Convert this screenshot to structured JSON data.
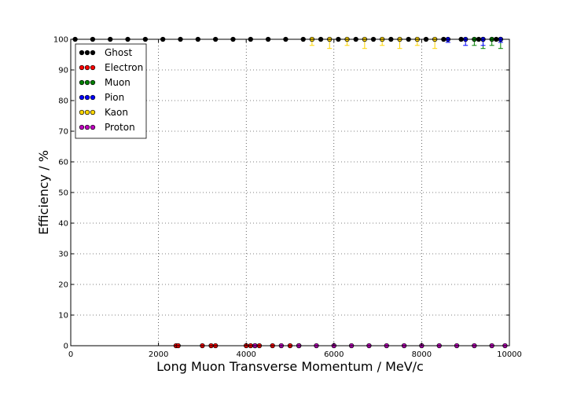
{
  "chart_data": {
    "type": "scatter",
    "title": "",
    "xlabel": "Long Muon Transverse Momentum / MeV/c",
    "ylabel": "Efficiency / %",
    "xlim": [
      0,
      10000
    ],
    "ylim": [
      0,
      100
    ],
    "xticks": [
      "0",
      "2000",
      "4000",
      "6000",
      "8000",
      "10000"
    ],
    "yticks": [
      "0",
      "10",
      "20",
      "30",
      "40",
      "50",
      "60",
      "70",
      "80",
      "90",
      "100"
    ],
    "grid": true,
    "legend_position": "top-left",
    "series": [
      {
        "name": "Ghost",
        "color": "#000000",
        "x": [
          100,
          500,
          900,
          1300,
          1700,
          2100,
          2500,
          2900,
          3300,
          3700,
          4100,
          4500,
          4900,
          5300,
          5700,
          6100,
          6500,
          6900,
          7300,
          7700,
          8100,
          8500,
          8900,
          9300,
          9700
        ],
        "y": [
          100,
          100,
          100,
          100,
          100,
          100,
          100,
          100,
          100,
          100,
          100,
          100,
          100,
          100,
          100,
          100,
          100,
          100,
          100,
          100,
          100,
          100,
          100,
          100,
          100
        ],
        "err": [
          0,
          0,
          0,
          0,
          0,
          0,
          0,
          0,
          0,
          0,
          0,
          0,
          0,
          0,
          0,
          0,
          0,
          0,
          0,
          0,
          0,
          0,
          0,
          0,
          0
        ]
      },
      {
        "name": "Electron",
        "color": "#ff0000",
        "x": [
          2400,
          2450,
          3000,
          3200,
          3300,
          4000,
          4100,
          4200,
          4300,
          4600,
          5000,
          5200
        ],
        "y": [
          0,
          0,
          0,
          0,
          0,
          0,
          0,
          0,
          0,
          0,
          0,
          0
        ],
        "err": [
          0,
          0,
          0,
          0,
          0,
          0,
          0,
          0,
          0,
          0,
          0,
          0
        ]
      },
      {
        "name": "Muon",
        "color": "#008000",
        "x": [
          9200,
          9400,
          9600,
          9800
        ],
        "y": [
          100,
          100,
          100,
          100
        ],
        "err": [
          2,
          3,
          2,
          3
        ]
      },
      {
        "name": "Pion",
        "color": "#0000ff",
        "x": [
          8600,
          9000,
          9400,
          9800
        ],
        "y": [
          100,
          100,
          100,
          100
        ],
        "err": [
          1,
          2,
          2,
          1
        ]
      },
      {
        "name": "Kaon",
        "color": "#ffd700",
        "x": [
          5500,
          5900,
          6300,
          6700,
          7100,
          7500,
          7900,
          8300
        ],
        "y": [
          100,
          100,
          100,
          100,
          100,
          100,
          100,
          100
        ],
        "err": [
          2,
          3,
          2,
          3,
          2,
          3,
          2,
          3
        ]
      },
      {
        "name": "Proton",
        "color": "#bf00bf",
        "x": [
          4200,
          4800,
          5200,
          5600,
          6000,
          6400,
          6800,
          7200,
          7600,
          8000,
          8400,
          8800,
          9200,
          9600,
          9900
        ],
        "y": [
          0,
          0,
          0,
          0,
          0,
          0,
          0,
          0,
          0,
          0,
          0,
          0,
          0,
          0,
          0
        ],
        "err": [
          0,
          0,
          0,
          0,
          0,
          0,
          0,
          0,
          0,
          0,
          0,
          0,
          0,
          0,
          0
        ]
      }
    ]
  }
}
